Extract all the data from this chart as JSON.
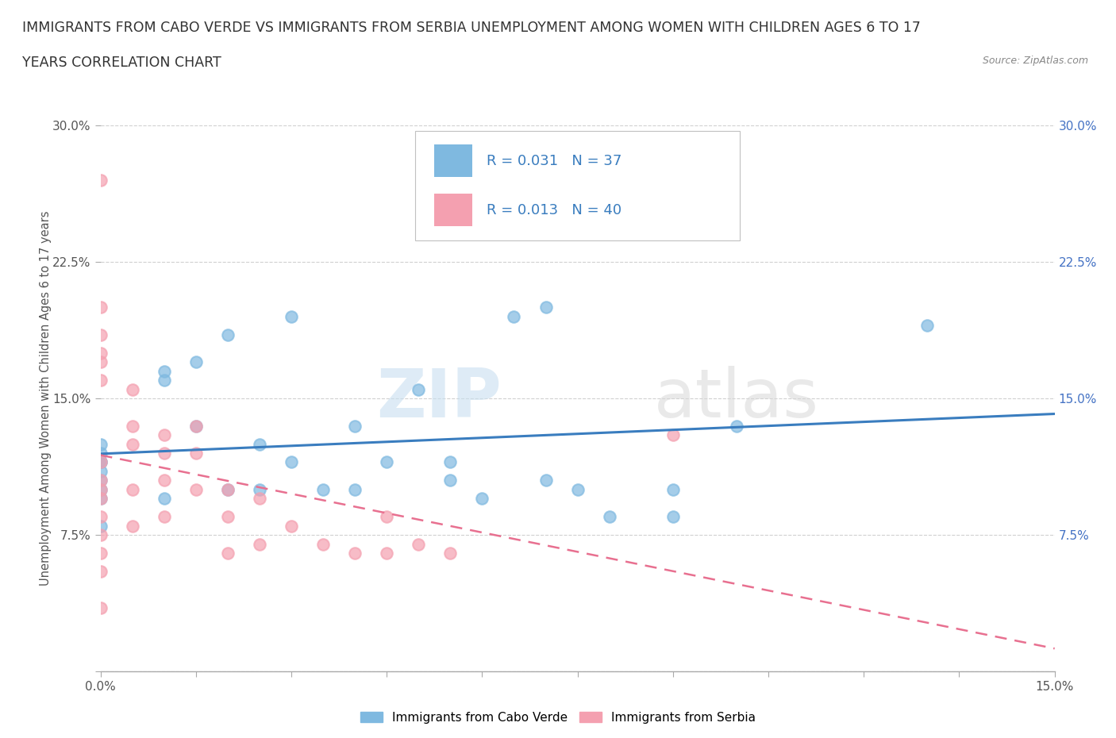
{
  "title_line1": "IMMIGRANTS FROM CABO VERDE VS IMMIGRANTS FROM SERBIA UNEMPLOYMENT AMONG WOMEN WITH CHILDREN AGES 6 TO 17",
  "title_line2": "YEARS CORRELATION CHART",
  "source": "Source: ZipAtlas.com",
  "ylabel": "Unemployment Among Women with Children Ages 6 to 17 years",
  "xlim": [
    0.0,
    0.15
  ],
  "ylim": [
    0.0,
    0.3
  ],
  "cabo_verde_color": "#7fb9e0",
  "serbia_color": "#f4a0b0",
  "cabo_verde_R": 0.031,
  "cabo_verde_N": 37,
  "serbia_R": 0.013,
  "serbia_N": 40,
  "watermark_zip": "ZIP",
  "watermark_atlas": "atlas",
  "cabo_verde_x": [
    0.0,
    0.0,
    0.0,
    0.0,
    0.0,
    0.0,
    0.0,
    0.0,
    0.0,
    0.01,
    0.01,
    0.01,
    0.015,
    0.015,
    0.02,
    0.02,
    0.025,
    0.025,
    0.03,
    0.03,
    0.035,
    0.04,
    0.04,
    0.045,
    0.05,
    0.055,
    0.055,
    0.06,
    0.065,
    0.07,
    0.07,
    0.075,
    0.08,
    0.09,
    0.13,
    0.09,
    0.1
  ],
  "cabo_verde_y": [
    0.125,
    0.115,
    0.095,
    0.12,
    0.115,
    0.11,
    0.105,
    0.1,
    0.08,
    0.165,
    0.16,
    0.095,
    0.17,
    0.135,
    0.185,
    0.1,
    0.125,
    0.1,
    0.195,
    0.115,
    0.1,
    0.1,
    0.135,
    0.115,
    0.155,
    0.105,
    0.115,
    0.095,
    0.195,
    0.2,
    0.105,
    0.1,
    0.085,
    0.1,
    0.19,
    0.085,
    0.135
  ],
  "serbia_x": [
    0.0,
    0.0,
    0.0,
    0.0,
    0.0,
    0.0,
    0.0,
    0.0,
    0.0,
    0.0,
    0.0,
    0.0,
    0.0,
    0.0,
    0.0,
    0.005,
    0.005,
    0.005,
    0.005,
    0.005,
    0.01,
    0.01,
    0.01,
    0.01,
    0.015,
    0.015,
    0.015,
    0.02,
    0.02,
    0.02,
    0.025,
    0.025,
    0.03,
    0.035,
    0.04,
    0.045,
    0.045,
    0.05,
    0.055,
    0.09
  ],
  "serbia_y": [
    0.27,
    0.2,
    0.185,
    0.175,
    0.17,
    0.16,
    0.115,
    0.105,
    0.1,
    0.095,
    0.085,
    0.075,
    0.065,
    0.055,
    0.035,
    0.155,
    0.135,
    0.125,
    0.1,
    0.08,
    0.13,
    0.12,
    0.105,
    0.085,
    0.135,
    0.12,
    0.1,
    0.1,
    0.085,
    0.065,
    0.095,
    0.07,
    0.08,
    0.07,
    0.065,
    0.085,
    0.065,
    0.07,
    0.065,
    0.13
  ],
  "legend_label_cabo": "Immigrants from Cabo Verde",
  "legend_label_serbia": "Immigrants from Serbia",
  "background_color": "#ffffff",
  "grid_color": "#d0d0d0",
  "tick_color_right": "#4472c4",
  "tick_color_left": "#555555"
}
